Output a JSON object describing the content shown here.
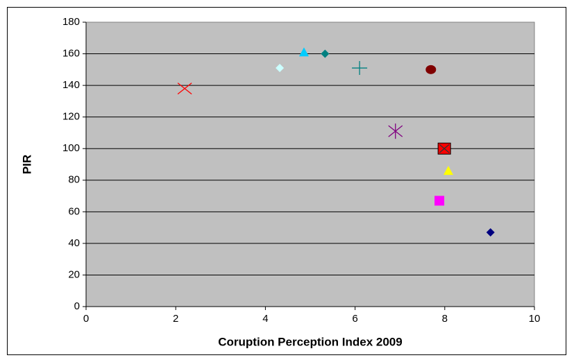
{
  "chart_data": {
    "type": "scatter",
    "x_label": "Coruption Perception Index 2009",
    "y_label": "PIR",
    "xlim": [
      0,
      10
    ],
    "ylim": [
      0,
      180
    ],
    "xticks": [
      0,
      2,
      4,
      6,
      8,
      10
    ],
    "yticks": [
      0,
      20,
      40,
      60,
      80,
      100,
      120,
      140,
      160,
      180
    ],
    "grid": true,
    "plot_background": "#c0c0c0",
    "series": [
      {
        "marker": "x",
        "color": "#ff0000",
        "x": [
          2.2
        ],
        "y": [
          138
        ]
      },
      {
        "marker": "diamond",
        "color": "#ccffff",
        "x": [
          4.32
        ],
        "y": [
          151
        ]
      },
      {
        "marker": "triangle",
        "color": "#00ccff",
        "x": [
          4.86
        ],
        "y": [
          161
        ]
      },
      {
        "marker": "diamond",
        "color": "#008080",
        "x": [
          5.33
        ],
        "y": [
          160
        ]
      },
      {
        "marker": "plus",
        "color": "#008080",
        "x": [
          6.1
        ],
        "y": [
          151
        ]
      },
      {
        "marker": "circle",
        "color": "#800000",
        "x": [
          7.69
        ],
        "y": [
          150
        ]
      },
      {
        "marker": "asterisk",
        "color": "#800080",
        "x": [
          6.9
        ],
        "y": [
          111
        ]
      },
      {
        "marker": "square-x",
        "color": "#ff0000",
        "x": [
          7.99
        ],
        "y": [
          100
        ]
      },
      {
        "marker": "triangle",
        "color": "#ffff00",
        "x": [
          8.08
        ],
        "y": [
          86
        ]
      },
      {
        "marker": "square",
        "color": "#ff00ff",
        "x": [
          7.88
        ],
        "y": [
          67
        ]
      },
      {
        "marker": "diamond",
        "color": "#000080",
        "x": [
          9.02
        ],
        "y": [
          47
        ]
      }
    ]
  }
}
